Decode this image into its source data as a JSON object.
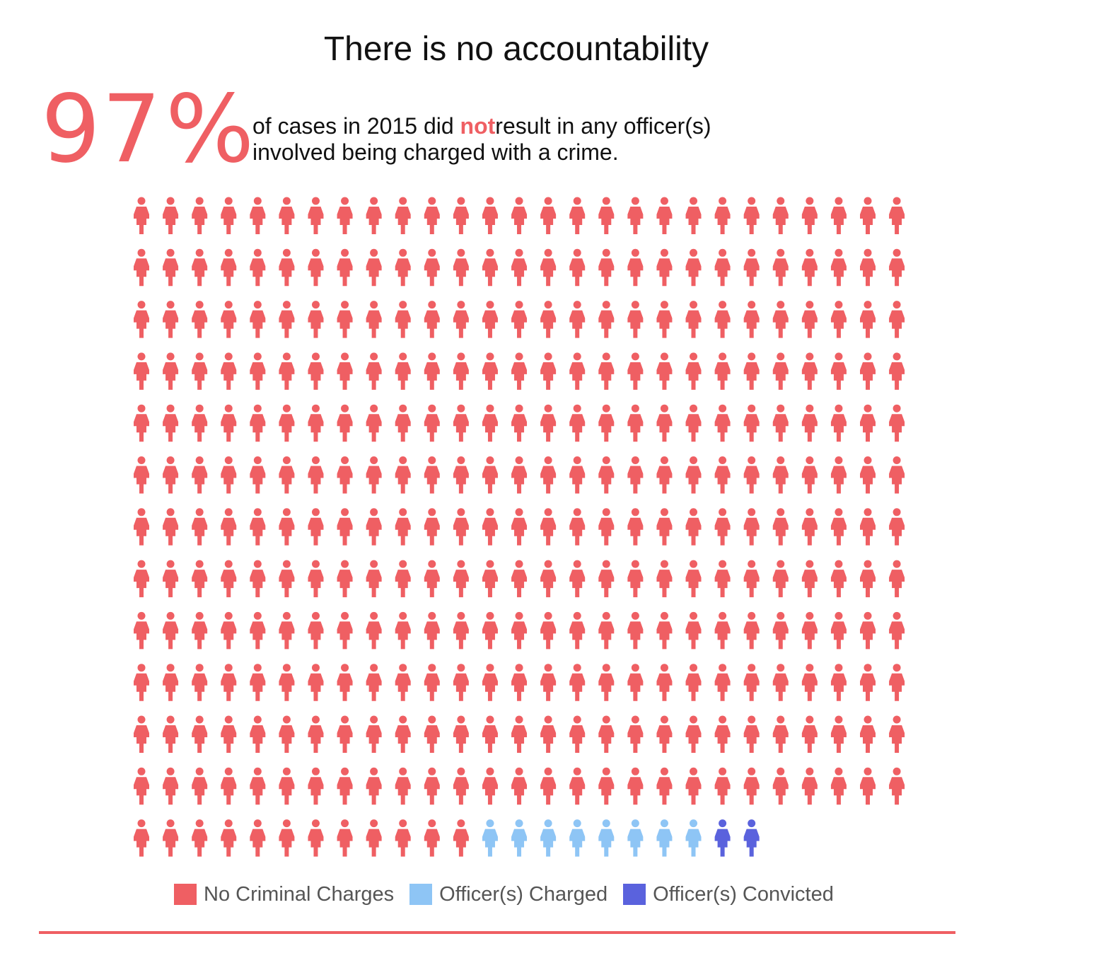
{
  "title": "There is no accountability",
  "headline": {
    "number": "97",
    "sign": "%",
    "text_before": "of cases in 2015 did",
    "highlight": "not",
    "text_after": "result in any officer(s)",
    "line2": "involved being charged with a crime."
  },
  "colors": {
    "no_charges": "#ef5f63",
    "charged": "#8ec5f5",
    "convicted": "#5a62dd",
    "accent": "#ef5f63"
  },
  "icon": "person-icon",
  "chart_data": {
    "type": "waffle",
    "title": "There is no accountability",
    "columns": 27,
    "unit": "person-icon",
    "categories": [
      "No Criminal Charges",
      "Officer(s) Charged",
      "Officer(s) Convicted"
    ],
    "values": [
      336,
      8,
      2
    ],
    "total": 346
  },
  "legend": [
    {
      "label": "No Criminal Charges",
      "color": "#ef5f63"
    },
    {
      "label": "Officer(s) Charged",
      "color": "#8ec5f5"
    },
    {
      "label": "Officer(s) Convicted",
      "color": "#5a62dd"
    }
  ]
}
